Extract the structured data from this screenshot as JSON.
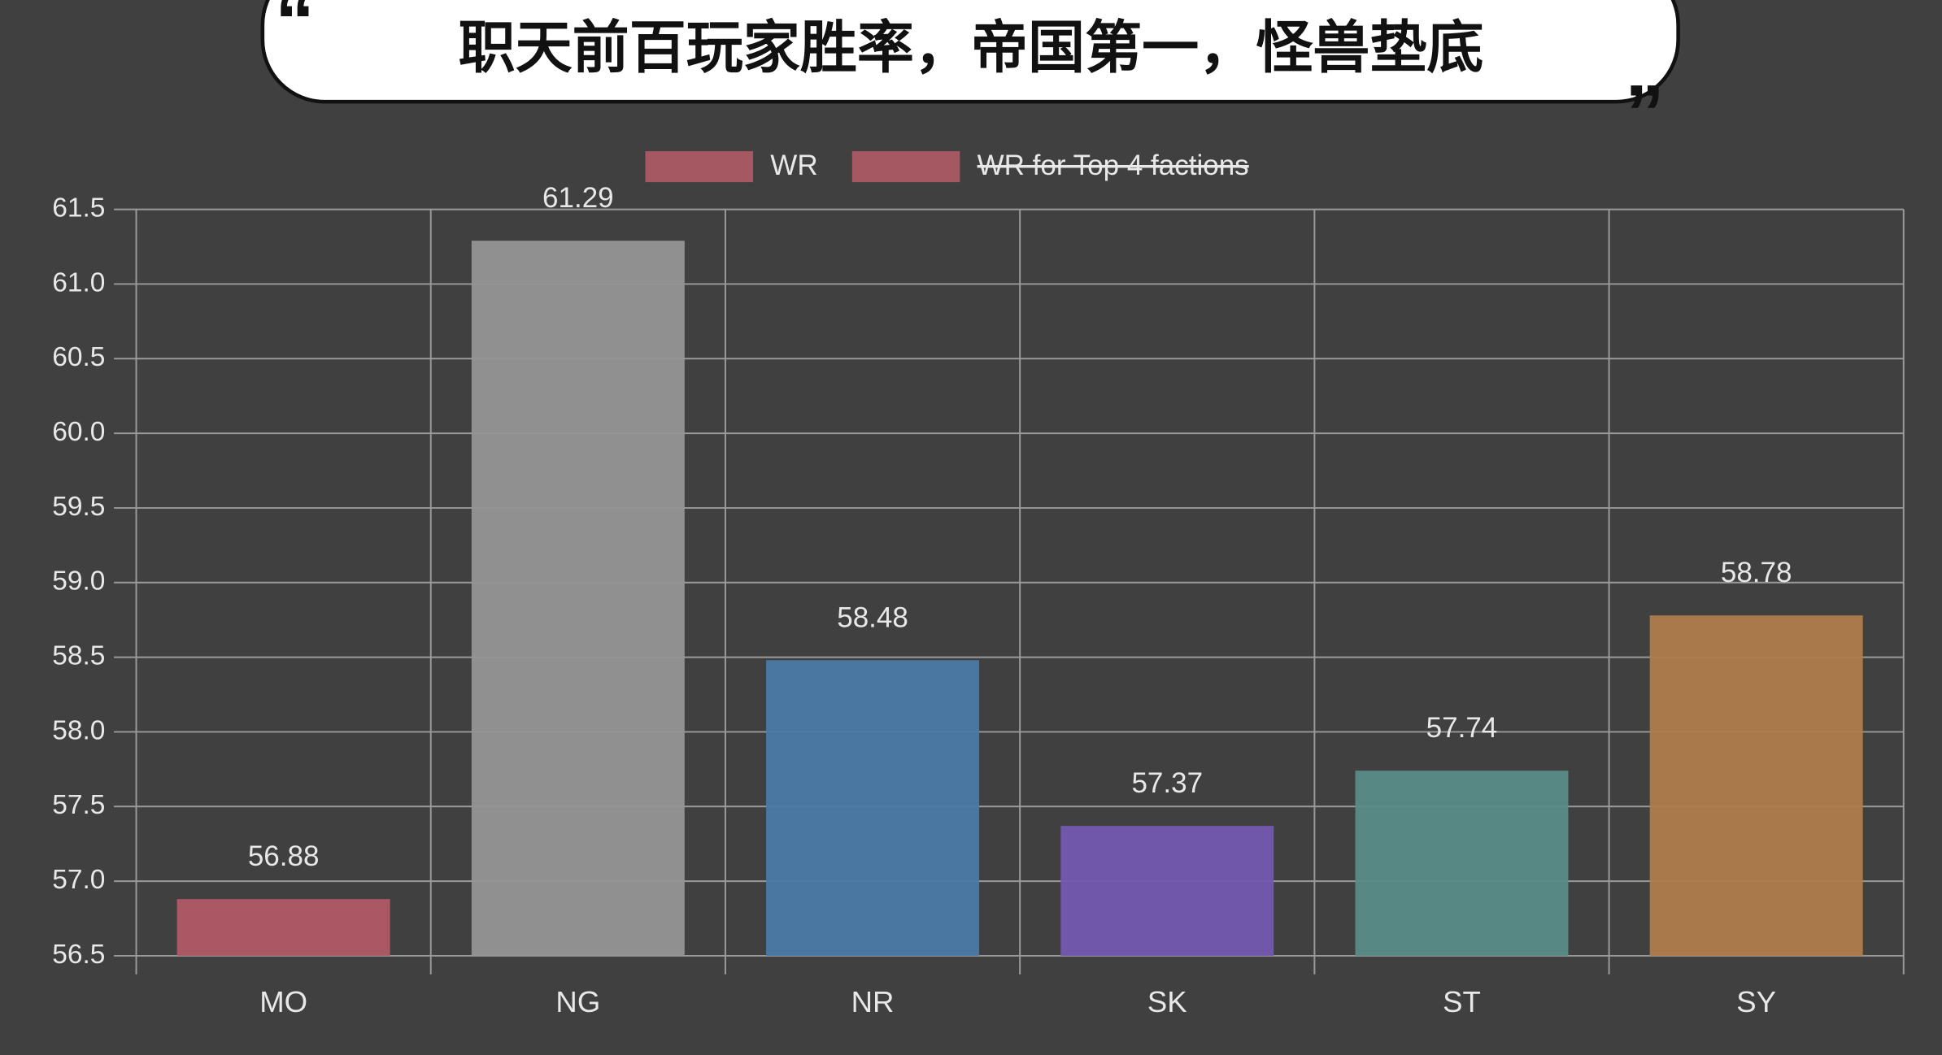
{
  "chart_data": {
    "type": "bar",
    "quote_open": "“",
    "title": "职天前百玩家胜率，帝国第一，怪兽垫底",
    "quote_close": "”",
    "legend": [
      {
        "label": "WR",
        "color": "#b05a66",
        "hidden": false
      },
      {
        "label": "WR for Top 4 factions",
        "color": "#b05a66",
        "hidden": true
      }
    ],
    "categories": [
      "MO",
      "NG",
      "NR",
      "SK",
      "ST",
      "SY"
    ],
    "values": [
      56.88,
      61.29,
      58.48,
      57.37,
      57.74,
      58.78
    ],
    "colors": [
      "#b05a66",
      "#959595",
      "#4a7aa8",
      "#7458b0",
      "#5a8c88",
      "#b07c4a"
    ],
    "ylim": [
      56.5,
      61.5
    ],
    "yticks": [
      56.5,
      {
        "value": 57,
        "label": "57.0"
      },
      57.5,
      {
        "value": 58,
        "label": "58.0"
      },
      58.5,
      {
        "value": 59,
        "label": "59.0"
      },
      59.5,
      {
        "value": 60,
        "label": "60.0"
      },
      60.5,
      {
        "value": 61,
        "label": "61.0"
      },
      61.5
    ],
    "grid": true
  }
}
